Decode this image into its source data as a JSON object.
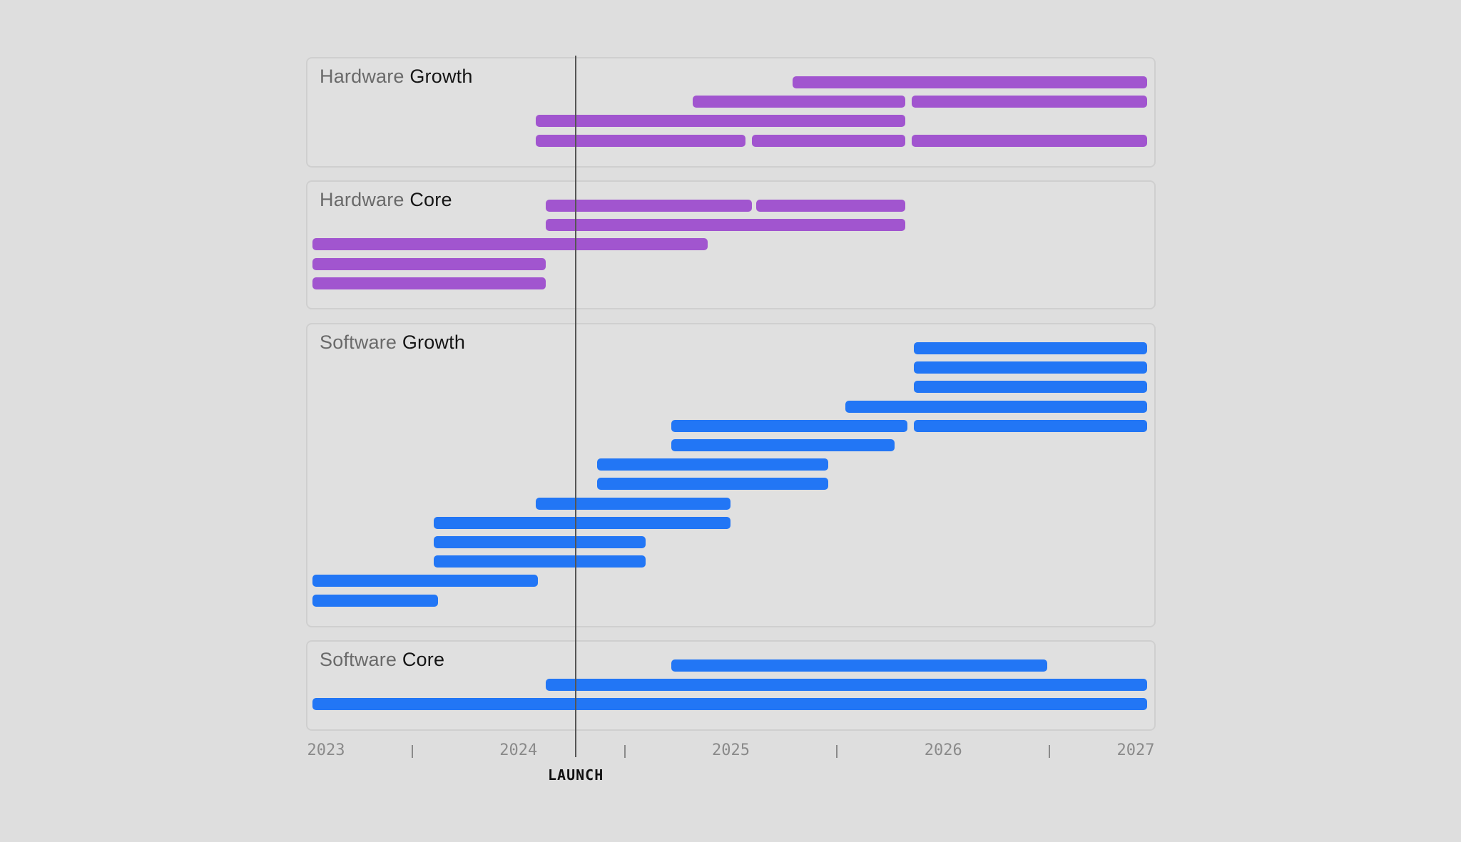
{
  "chart_data": {
    "type": "timeline",
    "x_axis": {
      "min": 2023,
      "max": 2027,
      "labels": [
        "2023",
        "2024",
        "2025",
        "2026",
        "2027"
      ],
      "minor_ticks": [
        2023.5,
        2024.5,
        2025.5,
        2026.5
      ]
    },
    "marker": {
      "label": "LAUNCH",
      "x": 2024.27
    },
    "colors": {
      "hardware": "#a155cf",
      "software": "#2276f5"
    },
    "groups": [
      {
        "title_light": "Hardware",
        "title_dark": "Growth",
        "color_key": "hardware",
        "rows": [
          [
            [
              2025.29,
              2026.96
            ]
          ],
          [
            [
              2024.82,
              2025.82
            ],
            [
              2025.85,
              2026.96
            ]
          ],
          [
            [
              2024.08,
              2025.82
            ]
          ],
          [
            [
              2024.08,
              2025.07
            ],
            [
              2025.1,
              2025.82
            ],
            [
              2025.85,
              2026.96
            ]
          ]
        ]
      },
      {
        "title_light": "Hardware",
        "title_dark": "Core",
        "color_key": "hardware",
        "rows": [
          [
            [
              2024.13,
              2025.1
            ],
            [
              2025.12,
              2025.82
            ]
          ],
          [
            [
              2024.13,
              2025.82
            ]
          ],
          [
            [
              2023.03,
              2024.89
            ]
          ],
          [
            [
              2023.03,
              2024.13
            ]
          ],
          [
            [
              2023.03,
              2024.13
            ]
          ]
        ]
      },
      {
        "title_light": "Software",
        "title_dark": "Growth",
        "color_key": "software",
        "rows": [
          [
            [
              2025.86,
              2026.96
            ]
          ],
          [
            [
              2025.86,
              2026.96
            ]
          ],
          [
            [
              2025.86,
              2026.96
            ]
          ],
          [
            [
              2025.54,
              2026.96
            ]
          ],
          [
            [
              2024.72,
              2025.83
            ],
            [
              2025.86,
              2026.96
            ]
          ],
          [
            [
              2024.72,
              2025.77
            ]
          ],
          [
            [
              2024.37,
              2025.46
            ]
          ],
          [
            [
              2024.37,
              2025.46
            ]
          ],
          [
            [
              2024.08,
              2025.0
            ]
          ],
          [
            [
              2023.6,
              2025.0
            ]
          ],
          [
            [
              2023.6,
              2024.6
            ]
          ],
          [
            [
              2023.6,
              2024.6
            ]
          ],
          [
            [
              2023.03,
              2024.09
            ]
          ],
          [
            [
              2023.03,
              2023.62
            ]
          ]
        ]
      },
      {
        "title_light": "Software",
        "title_dark": "Core",
        "color_key": "software",
        "rows": [
          [
            [
              2024.72,
              2026.49
            ]
          ],
          [
            [
              2024.13,
              2026.96
            ]
          ],
          [
            [
              2023.03,
              2026.96
            ]
          ]
        ]
      }
    ]
  }
}
